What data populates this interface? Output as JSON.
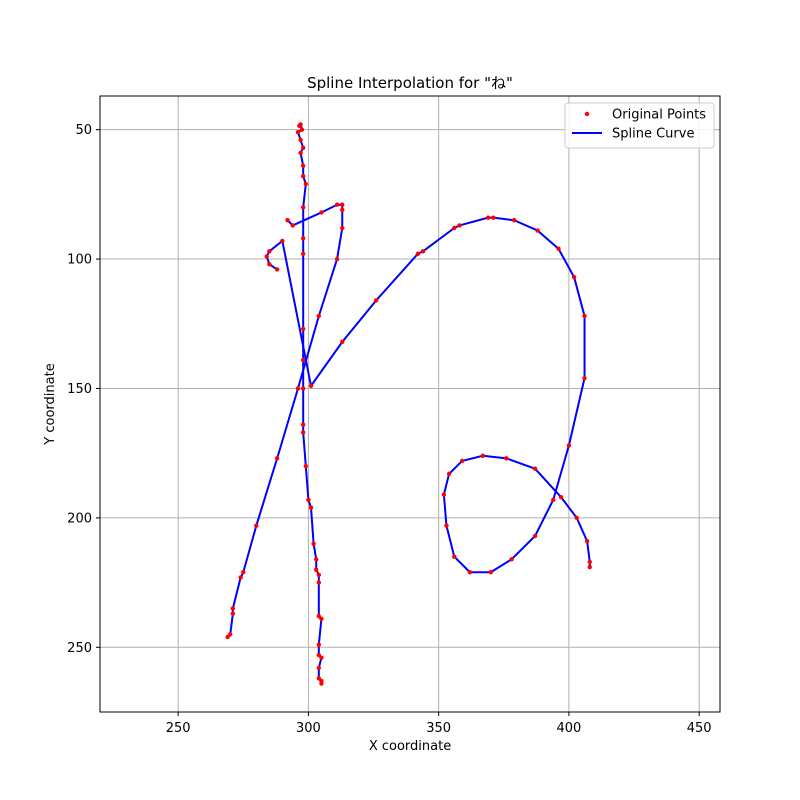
{
  "chart_data": {
    "type": "line",
    "title": "Spline Interpolation for \"ね\"",
    "xlabel": "X coordinate",
    "ylabel": "Y coordinate",
    "xlim": [
      220,
      458
    ],
    "ylim": [
      275,
      37
    ],
    "y_inverted": true,
    "grid": true,
    "legend_position": "top-right",
    "xticks": [
      250,
      300,
      350,
      400,
      450
    ],
    "yticks": [
      50,
      100,
      150,
      200,
      250
    ],
    "colors": {
      "points": "#ff0000",
      "curve": "#0000ff",
      "grid": "#b0b0b0"
    },
    "series": [
      {
        "name": "Original Points",
        "kind": "points",
        "strokes": [
          [
            [
              296.5,
              48.5
            ],
            [
              297,
              48
            ],
            [
              297.5,
              50
            ],
            [
              296,
              51
            ],
            [
              297,
              54
            ],
            [
              298,
              57
            ],
            [
              297,
              59
            ],
            [
              298,
              64
            ],
            [
              298,
              68
            ],
            [
              299,
              71
            ],
            [
              298,
              80
            ],
            [
              298,
              92
            ],
            [
              298,
              98
            ],
            [
              298,
              127
            ],
            [
              298,
              139
            ],
            [
              298,
              150
            ],
            [
              298,
              164
            ],
            [
              298,
              167
            ],
            [
              299,
              180
            ],
            [
              300,
              193
            ],
            [
              301,
              196
            ],
            [
              302,
              210
            ],
            [
              303,
              216
            ],
            [
              303,
              220
            ],
            [
              304,
              222
            ],
            [
              304,
              225
            ],
            [
              304,
              238
            ],
            [
              305,
              239
            ],
            [
              304,
              249
            ],
            [
              304,
              253
            ],
            [
              305,
              254
            ],
            [
              304,
              258
            ],
            [
              304,
              262
            ],
            [
              305,
              263
            ],
            [
              305,
              264
            ]
          ],
          [
            [
              292,
              85
            ],
            [
              294,
              87
            ],
            [
              305,
              82
            ],
            [
              311,
              79
            ],
            [
              313,
              79
            ],
            [
              313,
              81
            ],
            [
              313,
              88
            ],
            [
              311,
              100
            ],
            [
              304,
              122
            ],
            [
              296,
              150
            ],
            [
              288,
              177
            ],
            [
              280,
              203
            ],
            [
              275,
              221
            ],
            [
              274,
              223
            ],
            [
              271,
              235
            ],
            [
              271,
              237
            ],
            [
              270,
              245
            ],
            [
              269,
              246
            ]
          ],
          [
            [
              288,
              104
            ],
            [
              285,
              102
            ],
            [
              284,
              99
            ],
            [
              285,
              97
            ],
            [
              290,
              93
            ],
            [
              301,
              149
            ],
            [
              313,
              132
            ],
            [
              326,
              116
            ],
            [
              342,
              98
            ],
            [
              344,
              97
            ],
            [
              356,
              88
            ],
            [
              358,
              87
            ],
            [
              369,
              84
            ],
            [
              371,
              84
            ],
            [
              379,
              85
            ],
            [
              388,
              89
            ],
            [
              396,
              96
            ],
            [
              402,
              107
            ],
            [
              406,
              122
            ],
            [
              406,
              146
            ],
            [
              400,
              172
            ],
            [
              394,
              193
            ],
            [
              387,
              207
            ],
            [
              378,
              216
            ],
            [
              370,
              221
            ],
            [
              362,
              221
            ],
            [
              356,
              215
            ],
            [
              353,
              203
            ],
            [
              352,
              191
            ],
            [
              354,
              183
            ],
            [
              359,
              178
            ],
            [
              367,
              176
            ],
            [
              376,
              177
            ],
            [
              387,
              181
            ],
            [
              397,
              192
            ],
            [
              403,
              200
            ],
            [
              407,
              209
            ],
            [
              408,
              217
            ],
            [
              408,
              219
            ]
          ]
        ]
      },
      {
        "name": "Spline Curve",
        "kind": "line",
        "strokes": [
          [
            [
              296.5,
              48.5
            ],
            [
              297,
              48
            ],
            [
              297.5,
              50
            ],
            [
              296,
              51
            ],
            [
              297,
              54
            ],
            [
              298,
              57
            ],
            [
              297,
              59
            ],
            [
              298,
              64
            ],
            [
              298,
              68
            ],
            [
              299,
              71
            ],
            [
              298,
              80
            ],
            [
              298,
              92
            ],
            [
              298,
              98
            ],
            [
              298,
              127
            ],
            [
              298,
              139
            ],
            [
              298,
              150
            ],
            [
              298,
              164
            ],
            [
              298,
              167
            ],
            [
              299,
              180
            ],
            [
              300,
              193
            ],
            [
              301,
              196
            ],
            [
              302,
              210
            ],
            [
              303,
              216
            ],
            [
              303,
              220
            ],
            [
              304,
              222
            ],
            [
              304,
              225
            ],
            [
              304,
              238
            ],
            [
              305,
              239
            ],
            [
              304,
              249
            ],
            [
              304,
              253
            ],
            [
              305,
              254
            ],
            [
              304,
              258
            ],
            [
              304,
              262
            ],
            [
              305,
              263
            ],
            [
              305,
              264
            ]
          ],
          [
            [
              292,
              85
            ],
            [
              294,
              87
            ],
            [
              305,
              82
            ],
            [
              311,
              79
            ],
            [
              313,
              79
            ],
            [
              313,
              81
            ],
            [
              313,
              88
            ],
            [
              311,
              100
            ],
            [
              304,
              122
            ],
            [
              296,
              150
            ],
            [
              288,
              177
            ],
            [
              280,
              203
            ],
            [
              275,
              221
            ],
            [
              274,
              223
            ],
            [
              271,
              235
            ],
            [
              271,
              237
            ],
            [
              270,
              245
            ],
            [
              269,
              246
            ]
          ],
          [
            [
              288,
              104
            ],
            [
              285,
              102
            ],
            [
              284,
              99
            ],
            [
              285,
              97
            ],
            [
              290,
              93
            ],
            [
              301,
              149
            ],
            [
              313,
              132
            ],
            [
              326,
              116
            ],
            [
              342,
              98
            ],
            [
              344,
              97
            ],
            [
              356,
              88
            ],
            [
              358,
              87
            ],
            [
              369,
              84
            ],
            [
              371,
              84
            ],
            [
              379,
              85
            ],
            [
              388,
              89
            ],
            [
              396,
              96
            ],
            [
              402,
              107
            ],
            [
              406,
              122
            ],
            [
              406,
              146
            ],
            [
              400,
              172
            ],
            [
              394,
              193
            ],
            [
              387,
              207
            ],
            [
              378,
              216
            ],
            [
              370,
              221
            ],
            [
              362,
              221
            ],
            [
              356,
              215
            ],
            [
              353,
              203
            ],
            [
              352,
              191
            ],
            [
              354,
              183
            ],
            [
              359,
              178
            ],
            [
              367,
              176
            ],
            [
              376,
              177
            ],
            [
              387,
              181
            ],
            [
              397,
              192
            ],
            [
              403,
              200
            ],
            [
              407,
              209
            ],
            [
              408,
              217
            ],
            [
              408,
              219
            ]
          ]
        ]
      }
    ]
  }
}
